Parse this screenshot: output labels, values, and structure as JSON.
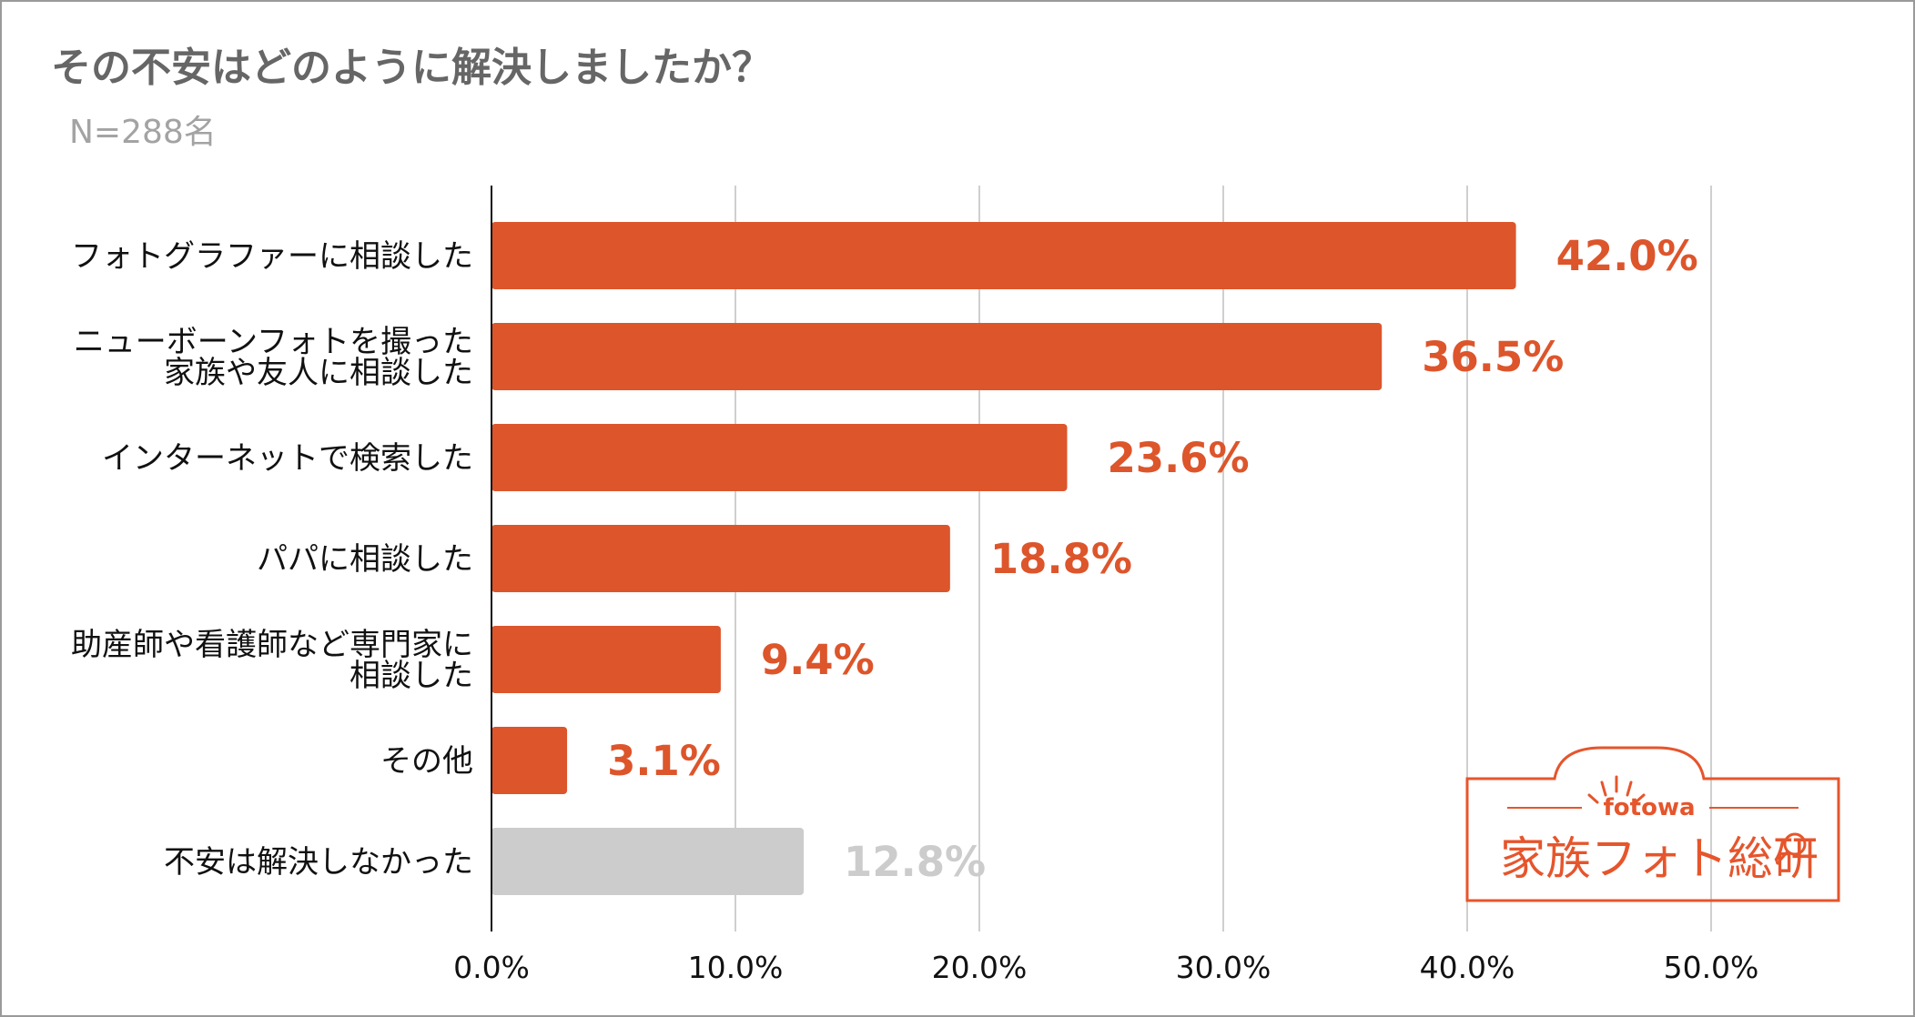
{
  "title": "その不安はどのように解決しましたか？",
  "subtitle": "N=288名",
  "chart_data": {
    "type": "bar",
    "orientation": "horizontal",
    "categories": [
      [
        "フォトグラファーに相談した"
      ],
      [
        "ニューボーンフォトを撮った",
        "家族や友人に相談した"
      ],
      [
        "インターネットで検索した"
      ],
      [
        "パパに相談した"
      ],
      [
        "助産師や看護師など専門家に",
        "相談した"
      ],
      [
        "その他"
      ],
      [
        "不安は解決しなかった"
      ]
    ],
    "values": [
      42.0,
      36.5,
      23.6,
      18.8,
      9.4,
      3.1,
      12.8
    ],
    "value_labels": [
      "42.0%",
      "36.5%",
      "23.6%",
      "18.8%",
      "9.4%",
      "3.1%",
      "12.8%"
    ],
    "bar_colors": [
      "#dd552b",
      "#dd552b",
      "#dd552b",
      "#dd552b",
      "#dd552b",
      "#dd552b",
      "#cccccc"
    ],
    "label_colors": [
      "#dd552b",
      "#dd552b",
      "#dd552b",
      "#dd552b",
      "#dd552b",
      "#dd552b",
      "#cccccc"
    ],
    "xlim": [
      0,
      55
    ],
    "xticks": [
      0,
      10,
      20,
      30,
      40,
      50
    ],
    "xtick_labels": [
      "0.0%",
      "10.0%",
      "20.0%",
      "30.0%",
      "40.0%",
      "50.0%"
    ],
    "grid": true,
    "xlabel": "",
    "ylabel": ""
  },
  "logo": {
    "brand": "fotowa",
    "text": "家族フォト総研",
    "color": "#e6552c"
  }
}
